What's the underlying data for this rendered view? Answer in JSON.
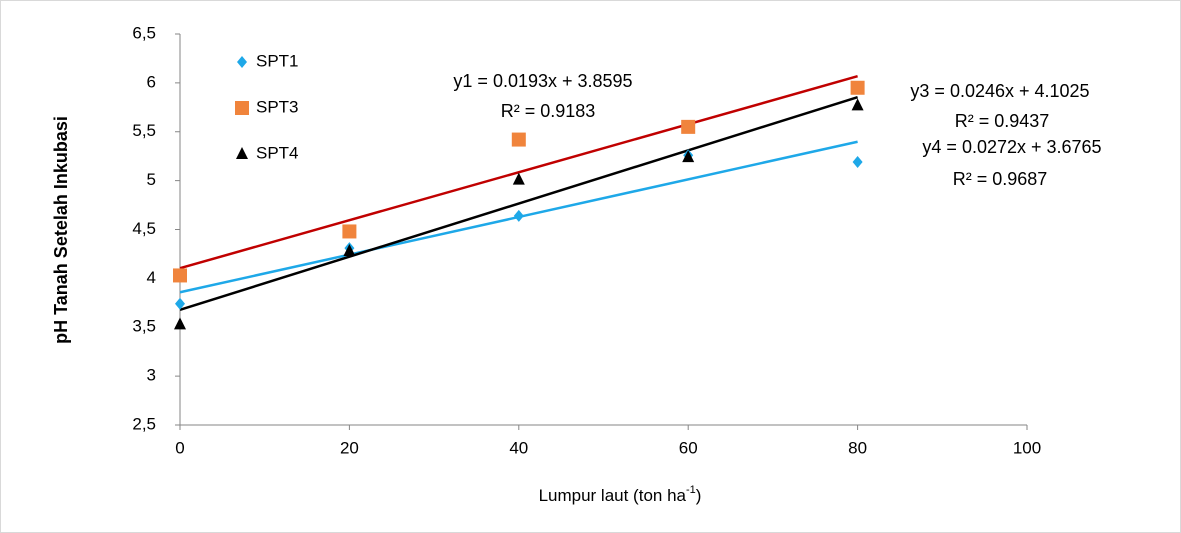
{
  "chart_data": {
    "type": "scatter",
    "ylabel": "pH Tanah  Setelah  Inkubasi",
    "xlabel": [
      "Lumpur laut (ton ha",
      "-1",
      ")"
    ],
    "xlim": [
      0,
      100
    ],
    "xticks": [
      0,
      20,
      40,
      60,
      80,
      100
    ],
    "ylim": [
      2.5,
      6.5
    ],
    "yticks": [
      {
        "value": 2.5,
        "label": "2,5"
      },
      3,
      {
        "value": 3.5,
        "label": "3,5"
      },
      4,
      {
        "value": 4.5,
        "label": "4,5"
      },
      5,
      {
        "value": 5.5,
        "label": "5,5"
      },
      6,
      {
        "value": 6.5,
        "label": "6,5"
      }
    ],
    "grid": false,
    "legend": "upper left",
    "x": [
      0,
      20,
      40,
      60,
      80
    ],
    "series": [
      {
        "name": "SPT1",
        "color": "#1ea8e8",
        "marker": "diamond",
        "trendline_color": "#1ea8e8",
        "values": [
          3.74,
          4.31,
          4.64,
          5.26,
          5.19
        ]
      },
      {
        "name": "SPT3",
        "color": "#f0843c",
        "marker": "square",
        "trendline_color": "#c00000",
        "values": [
          4.03,
          4.48,
          5.42,
          5.55,
          5.95
        ]
      },
      {
        "name": "SPT4",
        "color": "#000000",
        "marker": "triangle",
        "trendline_color": "#000000",
        "values": [
          3.53,
          4.28,
          5.01,
          5.24,
          5.77
        ]
      }
    ],
    "annotations": [
      "y1 = 0.0193x + 3.8595",
      "R² = 0.9183",
      "y3 = 0.0246x + 4.1025",
      "R² = 0.9437",
      "y4 = 0.0272x + 3.6765",
      "R² = 0.9687"
    ]
  }
}
